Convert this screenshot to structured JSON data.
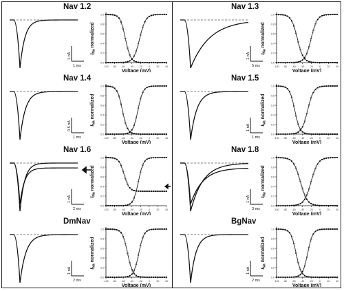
{
  "common": {
    "xlabel": "Voltage (mV)",
    "ylabel_main": "I",
    "ylabel_sub": "Na",
    "ylabel_rest": " normalized",
    "xticks": [
      "-100",
      "-80",
      "-60",
      "-40",
      "-20",
      "0",
      "20",
      "40"
    ],
    "yticks": [
      "0.0",
      "0.2",
      "0.4",
      "0.6",
      "0.8",
      "1.0"
    ]
  },
  "panels": [
    {
      "id": "nav12",
      "title": "Nav 1.2",
      "col": 0,
      "row": 0,
      "scale_current": "1 nA",
      "scale_time": "1 ms",
      "arrow": false,
      "tau": 1.8,
      "second_trace": false
    },
    {
      "id": "nav13",
      "title": "Nav 1.3",
      "col": 1,
      "row": 0,
      "scale_current": "1 nA",
      "scale_time": "5 ms",
      "arrow": false,
      "tau": 7.0,
      "second_trace": false
    },
    {
      "id": "nav14",
      "title": "Nav 1.4",
      "col": 0,
      "row": 1,
      "scale_current": "0.5 nA",
      "scale_time": "1 ms",
      "arrow": false,
      "tau": 2.0,
      "second_trace": false
    },
    {
      "id": "nav15",
      "title": "Nav 1.5",
      "col": 1,
      "row": 1,
      "scale_current": "1 nA",
      "scale_time": "1 ms",
      "arrow": false,
      "tau": 2.3,
      "second_trace": false
    },
    {
      "id": "nav16",
      "title": "Nav 1.6",
      "col": 0,
      "row": 2,
      "scale_current": "1 nA",
      "scale_time": "2 ms",
      "arrow": true,
      "tau": 1.7,
      "second_trace": true
    },
    {
      "id": "nav18",
      "title": "Nav 1.8",
      "col": 1,
      "row": 2,
      "scale_current": "1 nA",
      "scale_time": "3 ms",
      "arrow": false,
      "tau": 4.5,
      "second_trace": true
    },
    {
      "id": "dmnav",
      "title": "DmNav",
      "col": 0,
      "row": 3,
      "scale_current": "1 nA",
      "scale_time": "2 ms",
      "arrow": false,
      "tau": 2.2,
      "second_trace": false
    },
    {
      "id": "bgnav",
      "title": "BgNav",
      "col": 1,
      "row": 3,
      "scale_current": "1 nA",
      "scale_time": "2 ms",
      "arrow": false,
      "tau": 2.0,
      "second_trace": false
    }
  ],
  "chart_data": [
    {
      "type": "line",
      "panel": "Nav 1.2",
      "xlabel": "Voltage (mV)",
      "ylabel": "I_Na normalized",
      "xlim": [
        -100,
        40
      ],
      "ylim": [
        0,
        1
      ],
      "series": [
        {
          "curve": "activation",
          "v_half": -22,
          "k": 7
        },
        {
          "curve": "inactivation",
          "v_half": -55,
          "k": 6
        }
      ]
    },
    {
      "type": "line",
      "panel": "Nav 1.3",
      "xlabel": "Voltage (mV)",
      "ylabel": "I_Na normalized",
      "xlim": [
        -100,
        40
      ],
      "ylim": [
        0,
        1
      ],
      "series": [
        {
          "curve": "activation",
          "v_half": -20,
          "k": 7
        },
        {
          "curve": "inactivation",
          "v_half": -52,
          "k": 7
        }
      ]
    },
    {
      "type": "line",
      "panel": "Nav 1.4",
      "xlabel": "Voltage (mV)",
      "ylabel": "I_Na normalized",
      "xlim": [
        -100,
        40
      ],
      "ylim": [
        0,
        1
      ],
      "series": [
        {
          "curve": "activation",
          "v_half": -26,
          "k": 6
        },
        {
          "curve": "inactivation",
          "v_half": -62,
          "k": 6
        }
      ]
    },
    {
      "type": "line",
      "panel": "Nav 1.5",
      "xlabel": "Voltage (mV)",
      "ylabel": "I_Na normalized",
      "xlim": [
        -100,
        40
      ],
      "ylim": [
        0,
        1
      ],
      "series": [
        {
          "curve": "activation",
          "v_half": -28,
          "k": 7
        },
        {
          "curve": "inactivation",
          "v_half": -58,
          "k": 6
        }
      ]
    },
    {
      "type": "line",
      "panel": "Nav 1.6",
      "xlabel": "Voltage (mV)",
      "ylabel": "I_Na normalized",
      "xlim": [
        -100,
        40
      ],
      "ylim": [
        0,
        1
      ],
      "series": [
        {
          "curve": "activation",
          "v_half": -25,
          "k": 6
        },
        {
          "curve": "inactivation",
          "v_half": -58,
          "k": 6,
          "plateau": 0.3
        }
      ]
    },
    {
      "type": "line",
      "panel": "Nav 1.8",
      "xlabel": "Voltage (mV)",
      "ylabel": "I_Na normalized",
      "xlim": [
        -100,
        40
      ],
      "ylim": [
        0,
        1
      ],
      "series": [
        {
          "curve": "activation",
          "v_half": -20,
          "k": 8
        },
        {
          "curve": "inactivation",
          "v_half": -45,
          "k": 8
        }
      ]
    },
    {
      "type": "line",
      "panel": "DmNav",
      "xlabel": "Voltage (mV)",
      "ylabel": "I_Na normalized",
      "xlim": [
        -100,
        40
      ],
      "ylim": [
        0,
        1
      ],
      "series": [
        {
          "curve": "activation",
          "v_half": -24,
          "k": 6
        },
        {
          "curve": "inactivation",
          "v_half": -50,
          "k": 6
        }
      ]
    },
    {
      "type": "line",
      "panel": "BgNav",
      "xlabel": "Voltage (mV)",
      "ylabel": "I_Na normalized",
      "xlim": [
        -100,
        40
      ],
      "ylim": [
        0,
        1
      ],
      "series": [
        {
          "curve": "activation",
          "v_half": -28,
          "k": 6
        },
        {
          "curve": "inactivation",
          "v_half": -55,
          "k": 6
        }
      ]
    }
  ]
}
